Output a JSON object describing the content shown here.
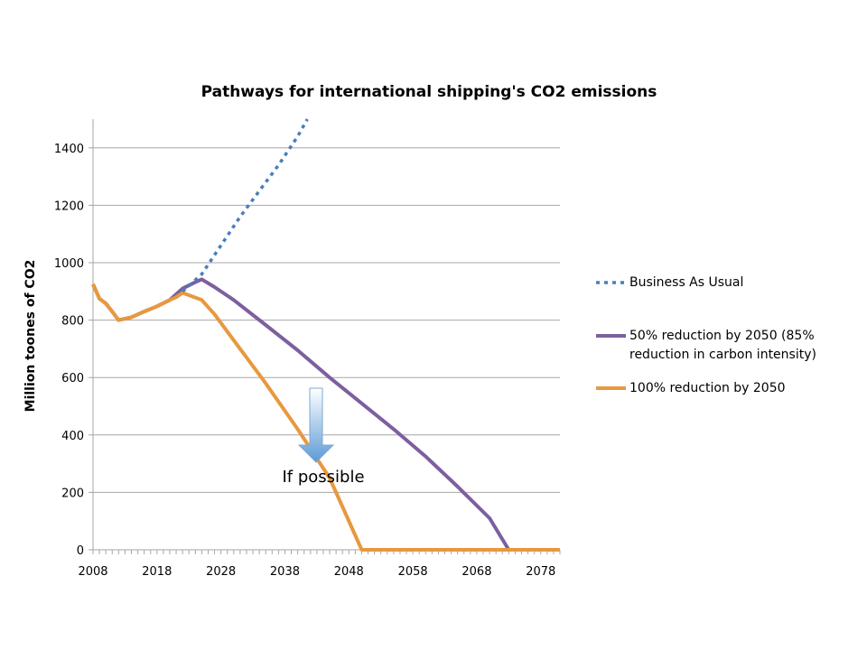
{
  "chart_data": {
    "type": "line",
    "title": "Pathways for international shipping's CO2 emissions",
    "xlabel": "",
    "ylabel": "Million toones of CO2",
    "xlim": [
      2008,
      2081
    ],
    "ylim": [
      0,
      1500
    ],
    "x_ticks": [
      "2008",
      "2018",
      "2028",
      "2038",
      "2048",
      "2058",
      "2068",
      "2078"
    ],
    "y_ticks": [
      "0",
      "200",
      "400",
      "600",
      "800",
      "1000",
      "1200",
      "1400"
    ],
    "grid": "horizontal",
    "legend_position": "right",
    "series": [
      {
        "name": "Business As Usual",
        "color": "#4a7ebb",
        "style": "dotted",
        "points": [
          [
            2022,
            900
          ],
          [
            2025,
            960
          ],
          [
            2028,
            1060
          ],
          [
            2031,
            1160
          ],
          [
            2034,
            1250
          ],
          [
            2037,
            1340
          ],
          [
            2040,
            1440
          ],
          [
            2041.5,
            1500
          ]
        ]
      },
      {
        "name": "50% reduction by 2050 (85% reduction in carbon intensity)",
        "legend_lines": [
          "50% reduction by 2050 (85%",
          "reduction in carbon intensity)"
        ],
        "color": "#7d5f9f",
        "style": "solid",
        "points": [
          [
            2008,
            925
          ],
          [
            2009,
            875
          ],
          [
            2010,
            858
          ],
          [
            2011,
            830
          ],
          [
            2012,
            800
          ],
          [
            2014,
            810
          ],
          [
            2016,
            830
          ],
          [
            2018,
            848
          ],
          [
            2020,
            870
          ],
          [
            2022,
            910
          ],
          [
            2024,
            932
          ],
          [
            2025,
            942
          ],
          [
            2027,
            915
          ],
          [
            2030,
            870
          ],
          [
            2035,
            783
          ],
          [
            2040,
            695
          ],
          [
            2045,
            600
          ],
          [
            2050,
            510
          ],
          [
            2055,
            420
          ],
          [
            2060,
            325
          ],
          [
            2065,
            220
          ],
          [
            2070,
            110
          ],
          [
            2073,
            0
          ],
          [
            2081,
            0
          ]
        ]
      },
      {
        "name": "100% reduction by 2050",
        "color": "#e8983e",
        "style": "solid",
        "points": [
          [
            2008,
            925
          ],
          [
            2009,
            875
          ],
          [
            2010,
            858
          ],
          [
            2011,
            830
          ],
          [
            2012,
            800
          ],
          [
            2014,
            810
          ],
          [
            2016,
            830
          ],
          [
            2018,
            848
          ],
          [
            2020,
            870
          ],
          [
            2021,
            880
          ],
          [
            2022,
            895
          ],
          [
            2025,
            870
          ],
          [
            2027,
            820
          ],
          [
            2030,
            730
          ],
          [
            2035,
            580
          ],
          [
            2040,
            420
          ],
          [
            2045,
            250
          ],
          [
            2050,
            0
          ],
          [
            2081,
            0
          ]
        ]
      }
    ],
    "annotation": {
      "text": "If possible",
      "arrow_color": "#5b9bd5"
    }
  }
}
